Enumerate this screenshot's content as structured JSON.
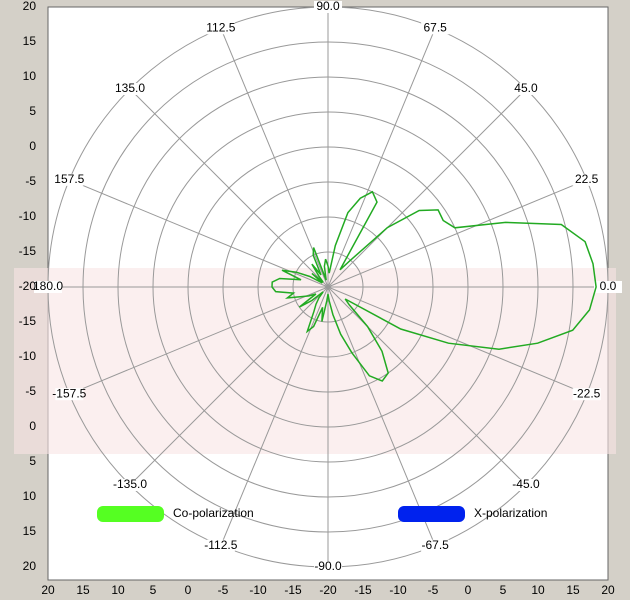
{
  "chart_data": {
    "type": "polar",
    "rlim": [
      -20,
      20
    ],
    "yticks": [
      20,
      15,
      10,
      5,
      0,
      -5,
      -10,
      -15,
      -20,
      -15,
      -10,
      -5,
      0,
      5,
      10,
      15,
      20
    ],
    "xticks": [
      20,
      15,
      10,
      5,
      0,
      -5,
      -10,
      -15,
      -20,
      -15,
      -10,
      -5,
      0,
      5,
      10,
      15,
      20
    ],
    "angle_ticks": [
      {
        "value": 0,
        "label": "0.0"
      },
      22.5,
      {
        "value": 45,
        "label": "45.0"
      },
      67.5,
      {
        "value": 90,
        "label": "90.0"
      },
      112.5,
      {
        "value": 135,
        "label": "135.0"
      },
      157.5,
      {
        "value": 180,
        "label": "180.0"
      },
      -157.5,
      {
        "value": -135,
        "label": "-135.0"
      },
      -112.5,
      {
        "value": -90,
        "label": "-90.0"
      },
      -67.5,
      {
        "value": -45,
        "label": "-45.0"
      },
      -22.5
    ],
    "angles": [
      -180,
      -175,
      -170,
      -165,
      -160,
      -155,
      -150,
      -145,
      -140,
      -135,
      -130,
      -125,
      -120,
      -115,
      -110,
      -105,
      -100,
      -95,
      -90,
      -85,
      -80,
      -75,
      -70,
      -65,
      -60,
      -55,
      -50,
      -45,
      -40,
      -35,
      -30,
      -25,
      -20,
      -15,
      -10,
      -5,
      0,
      5,
      10,
      15,
      20,
      25,
      30,
      35,
      40,
      45,
      50,
      55,
      60,
      65,
      70,
      75,
      80,
      85,
      90,
      95,
      100,
      105,
      110,
      115,
      120,
      125,
      130,
      135,
      140,
      145,
      150,
      155,
      160,
      165,
      170,
      175
    ],
    "series": [
      {
        "name": "Co-polarization",
        "color": "#22aa22",
        "legend_color": "#55ff22",
        "values": [
          -12,
          -12.5,
          -15,
          -14,
          -16,
          -17,
          -18,
          -15,
          -17,
          -19,
          -18,
          -17,
          -16,
          -13,
          -14,
          -17,
          -15,
          -18,
          -19,
          -18,
          -16,
          -13,
          -10,
          -6,
          -4.5,
          -5,
          -8,
          -12,
          -16,
          -17,
          -8,
          -1,
          6,
          11,
          15.5,
          17.5,
          18.3,
          18,
          17.3,
          14.5,
          7,
          0,
          -1,
          -0.8,
          -3,
          -8,
          -15,
          -17,
          -6,
          -5,
          -6.5,
          -9,
          -14,
          -18,
          -17,
          -16,
          -17,
          -19,
          -14,
          -15,
          -18,
          -16,
          -18,
          -19,
          -17,
          -19,
          -17,
          -15,
          -13,
          -16,
          -13,
          -12
        ]
      },
      {
        "name": "X-polarization",
        "color": "#0022ee",
        "legend_color": "#0022ee"
      }
    ],
    "legend": "bottom",
    "grid": true
  }
}
